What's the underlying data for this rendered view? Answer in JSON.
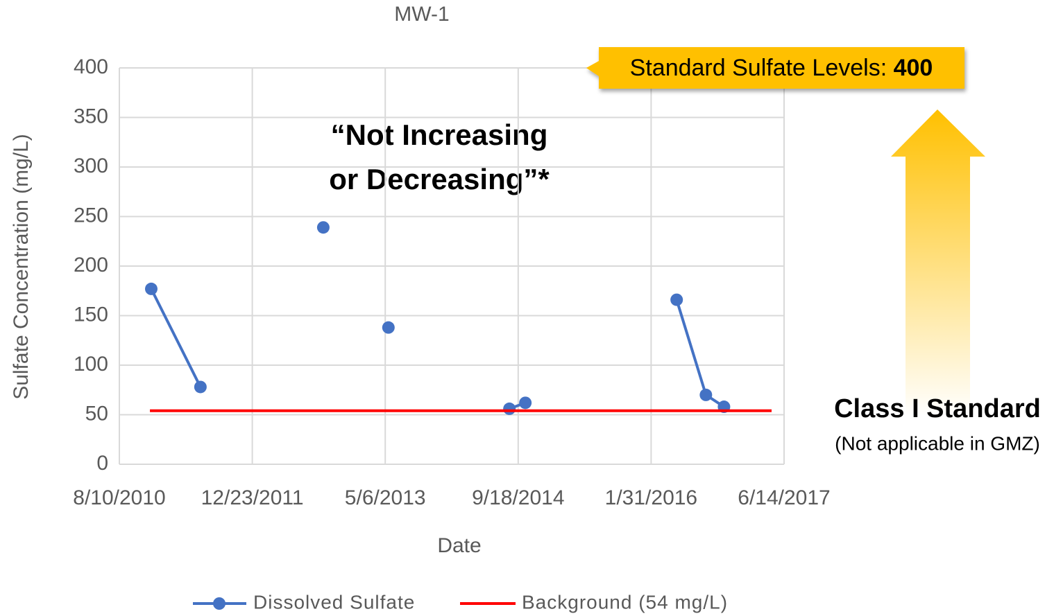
{
  "chart_data": {
    "type": "line",
    "title": "MW-1",
    "xlabel": "Date",
    "ylabel": "Sulfate Concentration  (mg/L)",
    "xlim": [
      "8/10/2010",
      "6/14/2017"
    ],
    "xticks": [
      "8/10/2010",
      "12/23/2011",
      "5/6/2013",
      "9/18/2014",
      "1/31/2016",
      "6/14/2017"
    ],
    "ylim": [
      0,
      400
    ],
    "yticks": [
      0,
      50,
      100,
      150,
      200,
      250,
      300,
      350,
      400
    ],
    "grid": true,
    "series": [
      {
        "name": "Dissolved Sulfate",
        "color": "#4472c4",
        "markers": true,
        "x": [
          "12/8/2010",
          "6/11/2011",
          null,
          "9/15/2012",
          null,
          "5/18/2013",
          null,
          "8/16/2014",
          "10/15/2014",
          null,
          "5/6/2016",
          "8/24/2016",
          "10/31/2016"
        ],
        "values": [
          177,
          78,
          null,
          239,
          null,
          138,
          null,
          56,
          62,
          null,
          166,
          70,
          58
        ]
      },
      {
        "name": "Background (54 mg/L)",
        "color": "#ff0000",
        "markers": false,
        "x": [
          "12/3/2010",
          "4/28/2017"
        ],
        "values": [
          54,
          54
        ]
      }
    ],
    "standard": {
      "label": "Standard Sulfate Levels:",
      "value": 400,
      "color": "#ffc000"
    },
    "annotations": [
      "“Not Increasing",
      "or Decreasing”*"
    ],
    "class_label": "Class I Standard",
    "class_note": "(Not applicable in GMZ)"
  }
}
